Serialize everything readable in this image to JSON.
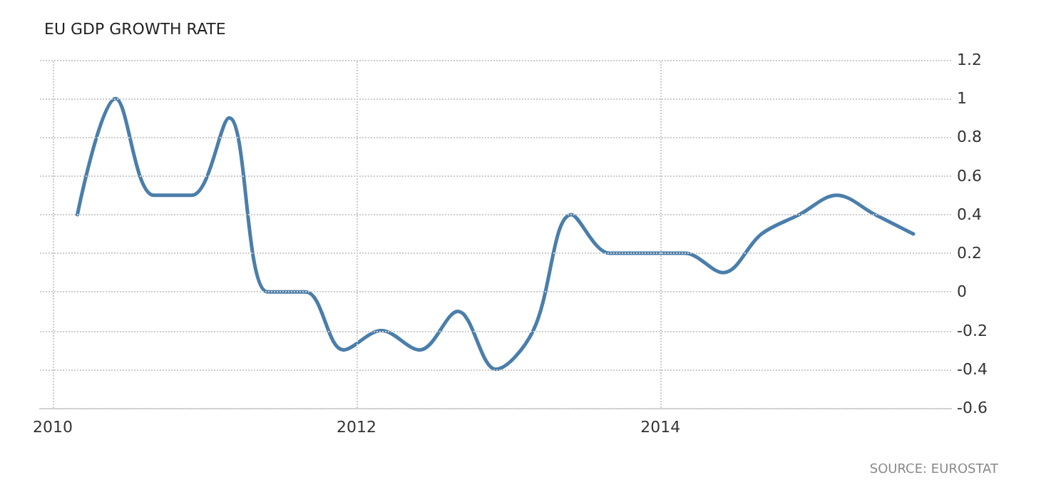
{
  "chart_data": {
    "type": "line",
    "title": "EU GDP GROWTH RATE",
    "x": [
      "2010-03",
      "2010-06",
      "2010-09",
      "2010-12",
      "2011-03",
      "2011-06",
      "2011-09",
      "2011-12",
      "2012-03",
      "2012-06",
      "2012-09",
      "2012-12",
      "2013-03",
      "2013-06",
      "2013-09",
      "2013-12",
      "2014-03",
      "2014-06",
      "2014-09",
      "2014-12",
      "2015-03",
      "2015-06",
      "2015-09"
    ],
    "series": [
      {
        "color": "#4a7eab",
        "values": [
          0.4,
          1.0,
          0.5,
          0.5,
          0.9,
          0.0,
          0.0,
          -0.3,
          -0.2,
          -0.3,
          -0.1,
          -0.4,
          -0.2,
          0.4,
          0.2,
          0.2,
          0.2,
          0.1,
          0.3,
          0.4,
          0.5,
          0.4,
          0.3
        ]
      }
    ],
    "xlim": [
      "2009-12",
      "2015-12"
    ],
    "xticks": [
      "2010",
      "2012",
      "2014"
    ],
    "ylim": [
      -0.6,
      1.2
    ],
    "yticks": [
      -0.6,
      -0.4,
      -0.2,
      0,
      0.2,
      0.4,
      0.6,
      0.8,
      1,
      1.2
    ],
    "grid": true,
    "marker": "none",
    "line_style": "solid",
    "annotations": [
      "SOURCE: EUROSTAT"
    ]
  }
}
